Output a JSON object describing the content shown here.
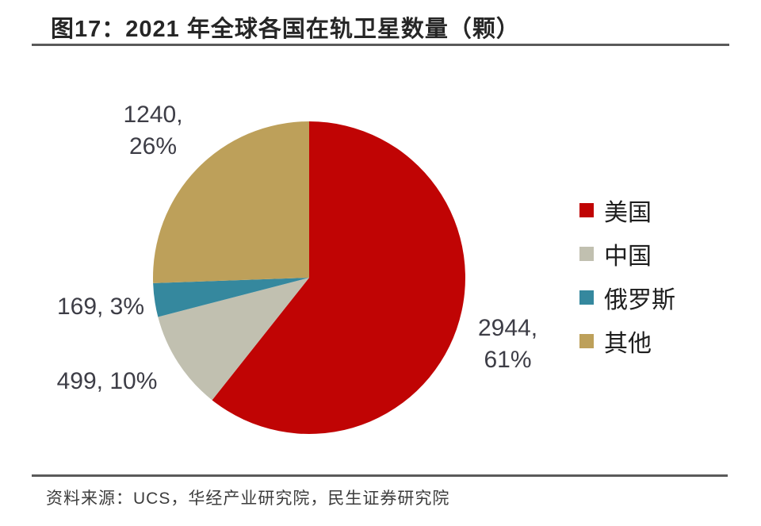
{
  "header": {
    "title": "图17：2021 年全球各国在轨卫星数量（颗）"
  },
  "chart_data": {
    "type": "pie",
    "title": "图17：2021 年全球各国在轨卫星数量（颗）",
    "unit": "颗",
    "categories": [
      "美国",
      "中国",
      "俄罗斯",
      "其他"
    ],
    "values": [
      2944,
      499,
      169,
      1240
    ],
    "percent": [
      61,
      10,
      3,
      26
    ],
    "data_labels": [
      "2944, 61%",
      "499, 10%",
      "169, 3%",
      "1240, 26%"
    ],
    "colors": [
      "#c00404",
      "#c1c0b0",
      "#35889e",
      "#bda05a"
    ],
    "start_angle_deg": 0,
    "direction": "clockwise",
    "legend_position": "right",
    "label_text_color": "#3d3d46"
  },
  "pie_labels": {
    "usa": {
      "line1": "2944,",
      "line2": "61%"
    },
    "china": "499, 10%",
    "russia": "169, 3%",
    "others": {
      "line1": "1240,",
      "line2": "26%"
    }
  },
  "legend": {
    "items": [
      {
        "label": "美国",
        "color": "#c00404"
      },
      {
        "label": "中国",
        "color": "#c1c0b0"
      },
      {
        "label": "俄罗斯",
        "color": "#35889e"
      },
      {
        "label": "其他",
        "color": "#bda05a"
      }
    ]
  },
  "footer": {
    "source": "资料来源：UCS，华经产业研究院，民生证券研究院"
  }
}
